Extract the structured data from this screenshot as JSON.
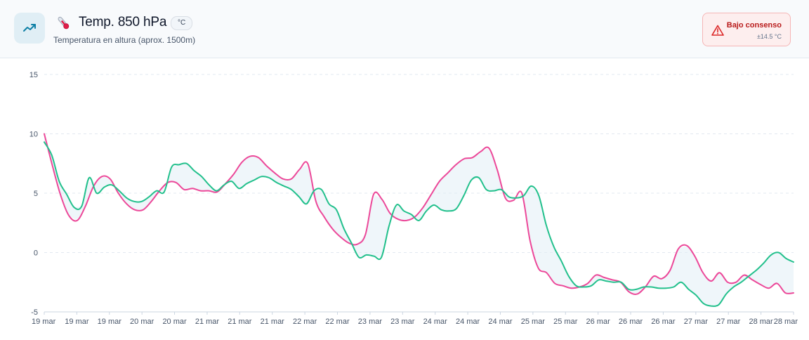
{
  "header": {
    "icon_semantic": "trend-up-icon",
    "emoji_semantic": "thermometer-icon",
    "title": "Temp. 850 hPa",
    "unit_badge": "°C",
    "subtitle": "Temperatura en altura (aprox. 1500m)"
  },
  "consensus": {
    "label": "Bajo consenso",
    "value": "±14.5 °C",
    "color": "#b91c1c",
    "icon_semantic": "warning-icon"
  },
  "chart_data": {
    "type": "line",
    "ylim": [
      -5,
      15
    ],
    "y_ticks": [
      -5,
      0,
      5,
      10,
      15
    ],
    "x_tick_labels": [
      "19 mar",
      "19 mar",
      "19 mar",
      "20 mar",
      "20 mar",
      "21 mar",
      "21 mar",
      "21 mar",
      "22 mar",
      "22 mar",
      "23 mar",
      "23 mar",
      "24 mar",
      "24 mar",
      "24 mar",
      "25 mar",
      "25 mar",
      "26 mar",
      "26 mar",
      "26 mar",
      "27 mar",
      "27 mar",
      "28 mar",
      "28 mar"
    ],
    "grid": "horizontal-dashed",
    "fill_between": true,
    "series": [
      {
        "color": "#ec4899",
        "values": [
          10.0,
          7.3,
          4.8,
          3.1,
          2.7,
          3.9,
          5.6,
          6.4,
          6.2,
          5.0,
          4.1,
          3.6,
          3.6,
          4.3,
          5.2,
          5.9,
          5.9,
          5.3,
          5.4,
          5.2,
          5.2,
          5.1,
          5.8,
          6.6,
          7.6,
          8.1,
          8.0,
          7.3,
          6.7,
          6.2,
          6.2,
          7.0,
          7.5,
          4.3,
          3.0,
          2.0,
          1.3,
          0.8,
          0.7,
          1.5,
          4.9,
          4.5,
          3.3,
          2.8,
          2.7,
          3.0,
          3.8,
          4.9,
          6.0,
          6.7,
          7.4,
          7.9,
          8.0,
          8.5,
          8.8,
          7.0,
          4.6,
          4.4,
          5.0,
          1.0,
          -1.3,
          -1.7,
          -2.6,
          -2.8,
          -3.0,
          -2.9,
          -2.6,
          -1.9,
          -2.1,
          -2.3,
          -2.5,
          -3.3,
          -3.5,
          -2.9,
          -2.0,
          -2.2,
          -1.5,
          0.3,
          0.6,
          -0.3,
          -1.7,
          -2.4,
          -1.7,
          -2.5,
          -2.5,
          -1.9,
          -2.3,
          -2.7,
          -3.0,
          -2.6,
          -3.4,
          -3.4
        ]
      },
      {
        "color": "#22c08c",
        "values": [
          9.3,
          8.2,
          6.0,
          4.9,
          3.8,
          3.9,
          6.3,
          5.0,
          5.5,
          5.7,
          5.2,
          4.6,
          4.3,
          4.3,
          4.7,
          5.2,
          5.1,
          7.2,
          7.4,
          7.5,
          6.9,
          6.4,
          5.7,
          5.2,
          5.7,
          6.0,
          5.4,
          5.8,
          6.1,
          6.4,
          6.3,
          5.9,
          5.6,
          5.3,
          4.7,
          4.1,
          5.2,
          5.3,
          4.1,
          3.6,
          2.0,
          0.8,
          -0.4,
          -0.2,
          -0.3,
          -0.4,
          2.2,
          4.0,
          3.5,
          3.2,
          2.7,
          3.5,
          4.0,
          3.6,
          3.5,
          3.7,
          4.8,
          6.1,
          6.3,
          5.3,
          5.2,
          5.3,
          4.7,
          4.6,
          4.8,
          5.6,
          4.8,
          2.3,
          0.5,
          -0.7,
          -2.0,
          -2.8,
          -2.9,
          -2.8,
          -2.3,
          -2.4,
          -2.5,
          -2.5,
          -3.1,
          -3.1,
          -2.9,
          -2.9,
          -3.0,
          -3.0,
          -2.9,
          -2.5,
          -3.1,
          -3.6,
          -4.3,
          -4.5,
          -4.4,
          -3.5,
          -2.9,
          -2.5,
          -2.0,
          -1.5,
          -0.9,
          -0.2,
          0.0,
          -0.5,
          -0.8
        ]
      }
    ]
  }
}
